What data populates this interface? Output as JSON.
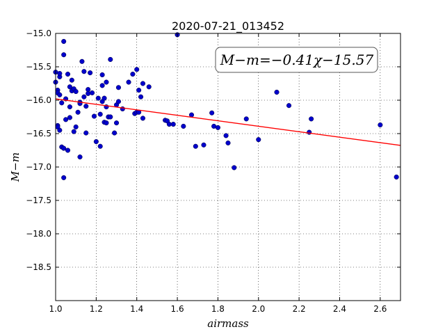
{
  "chart_data": {
    "type": "scatter",
    "title": "2020-07-21_013452",
    "xlabel": "airmass",
    "ylabel": "M−m",
    "xlim": [
      1.0,
      2.7
    ],
    "ylim": [
      -19.0,
      -15.0
    ],
    "y_inverted": true,
    "xticks": [
      "1.0",
      "1.2",
      "1.4",
      "1.6",
      "1.8",
      "2.0",
      "2.2",
      "2.4",
      "2.6"
    ],
    "yticks": [
      "−15.0",
      "−15.5",
      "−16.0",
      "−16.5",
      "−17.0",
      "−17.5",
      "−18.0",
      "−18.5"
    ],
    "grid": true,
    "annotation": "M−m=−0.41χ−15.57",
    "fit": {
      "slope": -0.41,
      "intercept": -15.57,
      "color": "#ff0000"
    },
    "point_color": "#0000cc",
    "points": [
      [
        1.0,
        -15.58
      ],
      [
        1.0,
        -15.73
      ],
      [
        1.01,
        -15.85
      ],
      [
        1.01,
        -15.89
      ],
      [
        1.01,
        -16.38
      ],
      [
        1.01,
        -16.4
      ],
      [
        1.02,
        -16.45
      ],
      [
        1.02,
        -15.65
      ],
      [
        1.02,
        -15.6
      ],
      [
        1.02,
        -15.92
      ],
      [
        1.03,
        -16.7
      ],
      [
        1.03,
        -16.04
      ],
      [
        1.04,
        -16.72
      ],
      [
        1.04,
        -15.12
      ],
      [
        1.04,
        -15.32
      ],
      [
        1.04,
        -17.16
      ],
      [
        1.05,
        -15.98
      ],
      [
        1.05,
        -16.29
      ],
      [
        1.06,
        -16.75
      ],
      [
        1.06,
        -15.61
      ],
      [
        1.07,
        -16.26
      ],
      [
        1.07,
        -15.8
      ],
      [
        1.07,
        -16.1
      ],
      [
        1.08,
        -15.7
      ],
      [
        1.08,
        -15.86
      ],
      [
        1.09,
        -15.83
      ],
      [
        1.09,
        -16.47
      ],
      [
        1.1,
        -15.87
      ],
      [
        1.1,
        -16.4
      ],
      [
        1.11,
        -16.18
      ],
      [
        1.12,
        -16.03
      ],
      [
        1.12,
        -16.05
      ],
      [
        1.12,
        -16.85
      ],
      [
        1.13,
        -15.42
      ],
      [
        1.14,
        -15.95
      ],
      [
        1.14,
        -15.57
      ],
      [
        1.15,
        -16.49
      ],
      [
        1.15,
        -16.09
      ],
      [
        1.16,
        -15.84
      ],
      [
        1.16,
        -15.9
      ],
      [
        1.17,
        -15.59
      ],
      [
        1.18,
        -15.89
      ],
      [
        1.19,
        -16.24
      ],
      [
        1.2,
        -16.62
      ],
      [
        1.21,
        -15.97
      ],
      [
        1.22,
        -16.21
      ],
      [
        1.22,
        -16.69
      ],
      [
        1.23,
        -15.62
      ],
      [
        1.23,
        -16.02
      ],
      [
        1.23,
        -15.78
      ],
      [
        1.24,
        -15.97
      ],
      [
        1.24,
        -16.33
      ],
      [
        1.25,
        -16.34
      ],
      [
        1.25,
        -16.1
      ],
      [
        1.25,
        -15.73
      ],
      [
        1.26,
        -16.25
      ],
      [
        1.27,
        -16.25
      ],
      [
        1.27,
        -15.39
      ],
      [
        1.29,
        -16.49
      ],
      [
        1.3,
        -16.07
      ],
      [
        1.3,
        -16.34
      ],
      [
        1.31,
        -16.02
      ],
      [
        1.31,
        -15.81
      ],
      [
        1.33,
        -16.13
      ],
      [
        1.36,
        -15.73
      ],
      [
        1.38,
        -15.61
      ],
      [
        1.39,
        -16.2
      ],
      [
        1.4,
        -16.18
      ],
      [
        1.4,
        -15.54
      ],
      [
        1.41,
        -15.85
      ],
      [
        1.41,
        -16.18
      ],
      [
        1.42,
        -15.95
      ],
      [
        1.43,
        -16.27
      ],
      [
        1.43,
        -15.75
      ],
      [
        1.46,
        -15.8
      ],
      [
        1.54,
        -16.3
      ],
      [
        1.55,
        -16.31
      ],
      [
        1.56,
        -16.36
      ],
      [
        1.58,
        -16.36
      ],
      [
        1.6,
        -15.02
      ],
      [
        1.63,
        -16.39
      ],
      [
        1.67,
        -16.22
      ],
      [
        1.69,
        -16.69
      ],
      [
        1.73,
        -16.67
      ],
      [
        1.77,
        -16.19
      ],
      [
        1.78,
        -16.39
      ],
      [
        1.8,
        -16.41
      ],
      [
        1.84,
        -16.53
      ],
      [
        1.85,
        -16.64
      ],
      [
        1.88,
        -17.01
      ],
      [
        1.94,
        -16.28
      ],
      [
        2.0,
        -16.59
      ],
      [
        2.09,
        -15.88
      ],
      [
        2.15,
        -16.08
      ],
      [
        2.25,
        -16.48
      ],
      [
        2.26,
        -16.28
      ],
      [
        2.6,
        -16.37
      ],
      [
        2.68,
        -17.15
      ]
    ]
  }
}
